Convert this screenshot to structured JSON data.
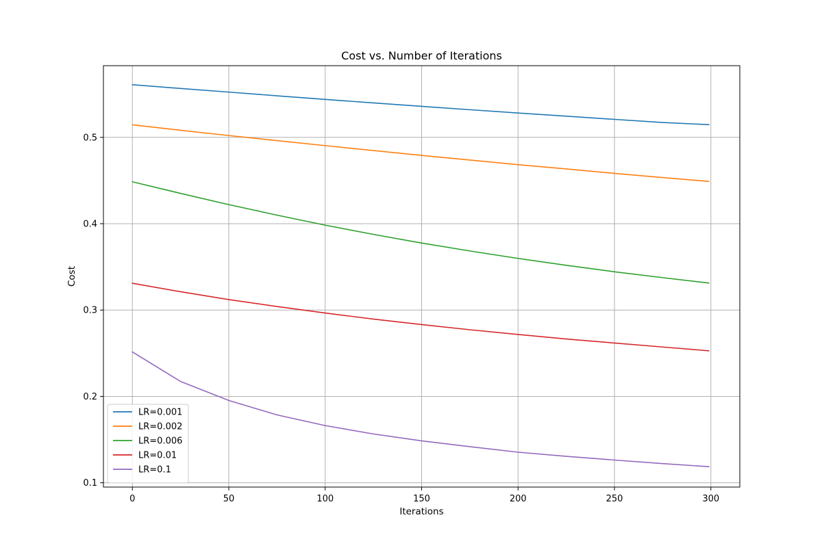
{
  "chart_data": {
    "type": "line",
    "title": "Cost vs. Number of Iterations",
    "xlabel": "Iterations",
    "ylabel": "Cost",
    "xlim": [
      -15,
      315
    ],
    "ylim": [
      0.095,
      0.583
    ],
    "xticks": [
      0,
      50,
      100,
      150,
      200,
      250,
      300
    ],
    "yticks": [
      0.1,
      0.2,
      0.3,
      0.4,
      0.5
    ],
    "grid": true,
    "legend_position": "lower-left",
    "x": [
      0,
      25,
      50,
      75,
      100,
      125,
      150,
      175,
      200,
      225,
      250,
      275,
      299
    ],
    "series": [
      {
        "name": "LR=0.001",
        "color": "#1f77b4",
        "values": [
          0.561,
          0.5566,
          0.5524,
          0.5481,
          0.5439,
          0.5399,
          0.5359,
          0.532,
          0.5282,
          0.5245,
          0.5208,
          0.5172,
          0.5147
        ]
      },
      {
        "name": "LR=0.002",
        "color": "#ff7f0e",
        "values": [
          0.5145,
          0.5082,
          0.5021,
          0.4962,
          0.4904,
          0.4847,
          0.4791,
          0.4737,
          0.4684,
          0.4634,
          0.4583,
          0.4534,
          0.449
        ]
      },
      {
        "name": "LR=0.006",
        "color": "#2ca02c",
        "values": [
          0.4485,
          0.4351,
          0.4221,
          0.4099,
          0.3983,
          0.3876,
          0.3776,
          0.3684,
          0.3598,
          0.3518,
          0.3443,
          0.3375,
          0.3312
        ]
      },
      {
        "name": "LR=0.01",
        "color": "#d62728",
        "values": [
          0.331,
          0.3212,
          0.3121,
          0.3041,
          0.2966,
          0.2895,
          0.2832,
          0.2772,
          0.2717,
          0.2665,
          0.2618,
          0.2572,
          0.2528
        ]
      },
      {
        "name": "LR=0.1",
        "color": "#9467bd",
        "values": [
          0.2515,
          0.2173,
          0.1953,
          0.1786,
          0.1662,
          0.1565,
          0.1485,
          0.1418,
          0.1354,
          0.1306,
          0.1263,
          0.1222,
          0.1186
        ]
      }
    ]
  }
}
